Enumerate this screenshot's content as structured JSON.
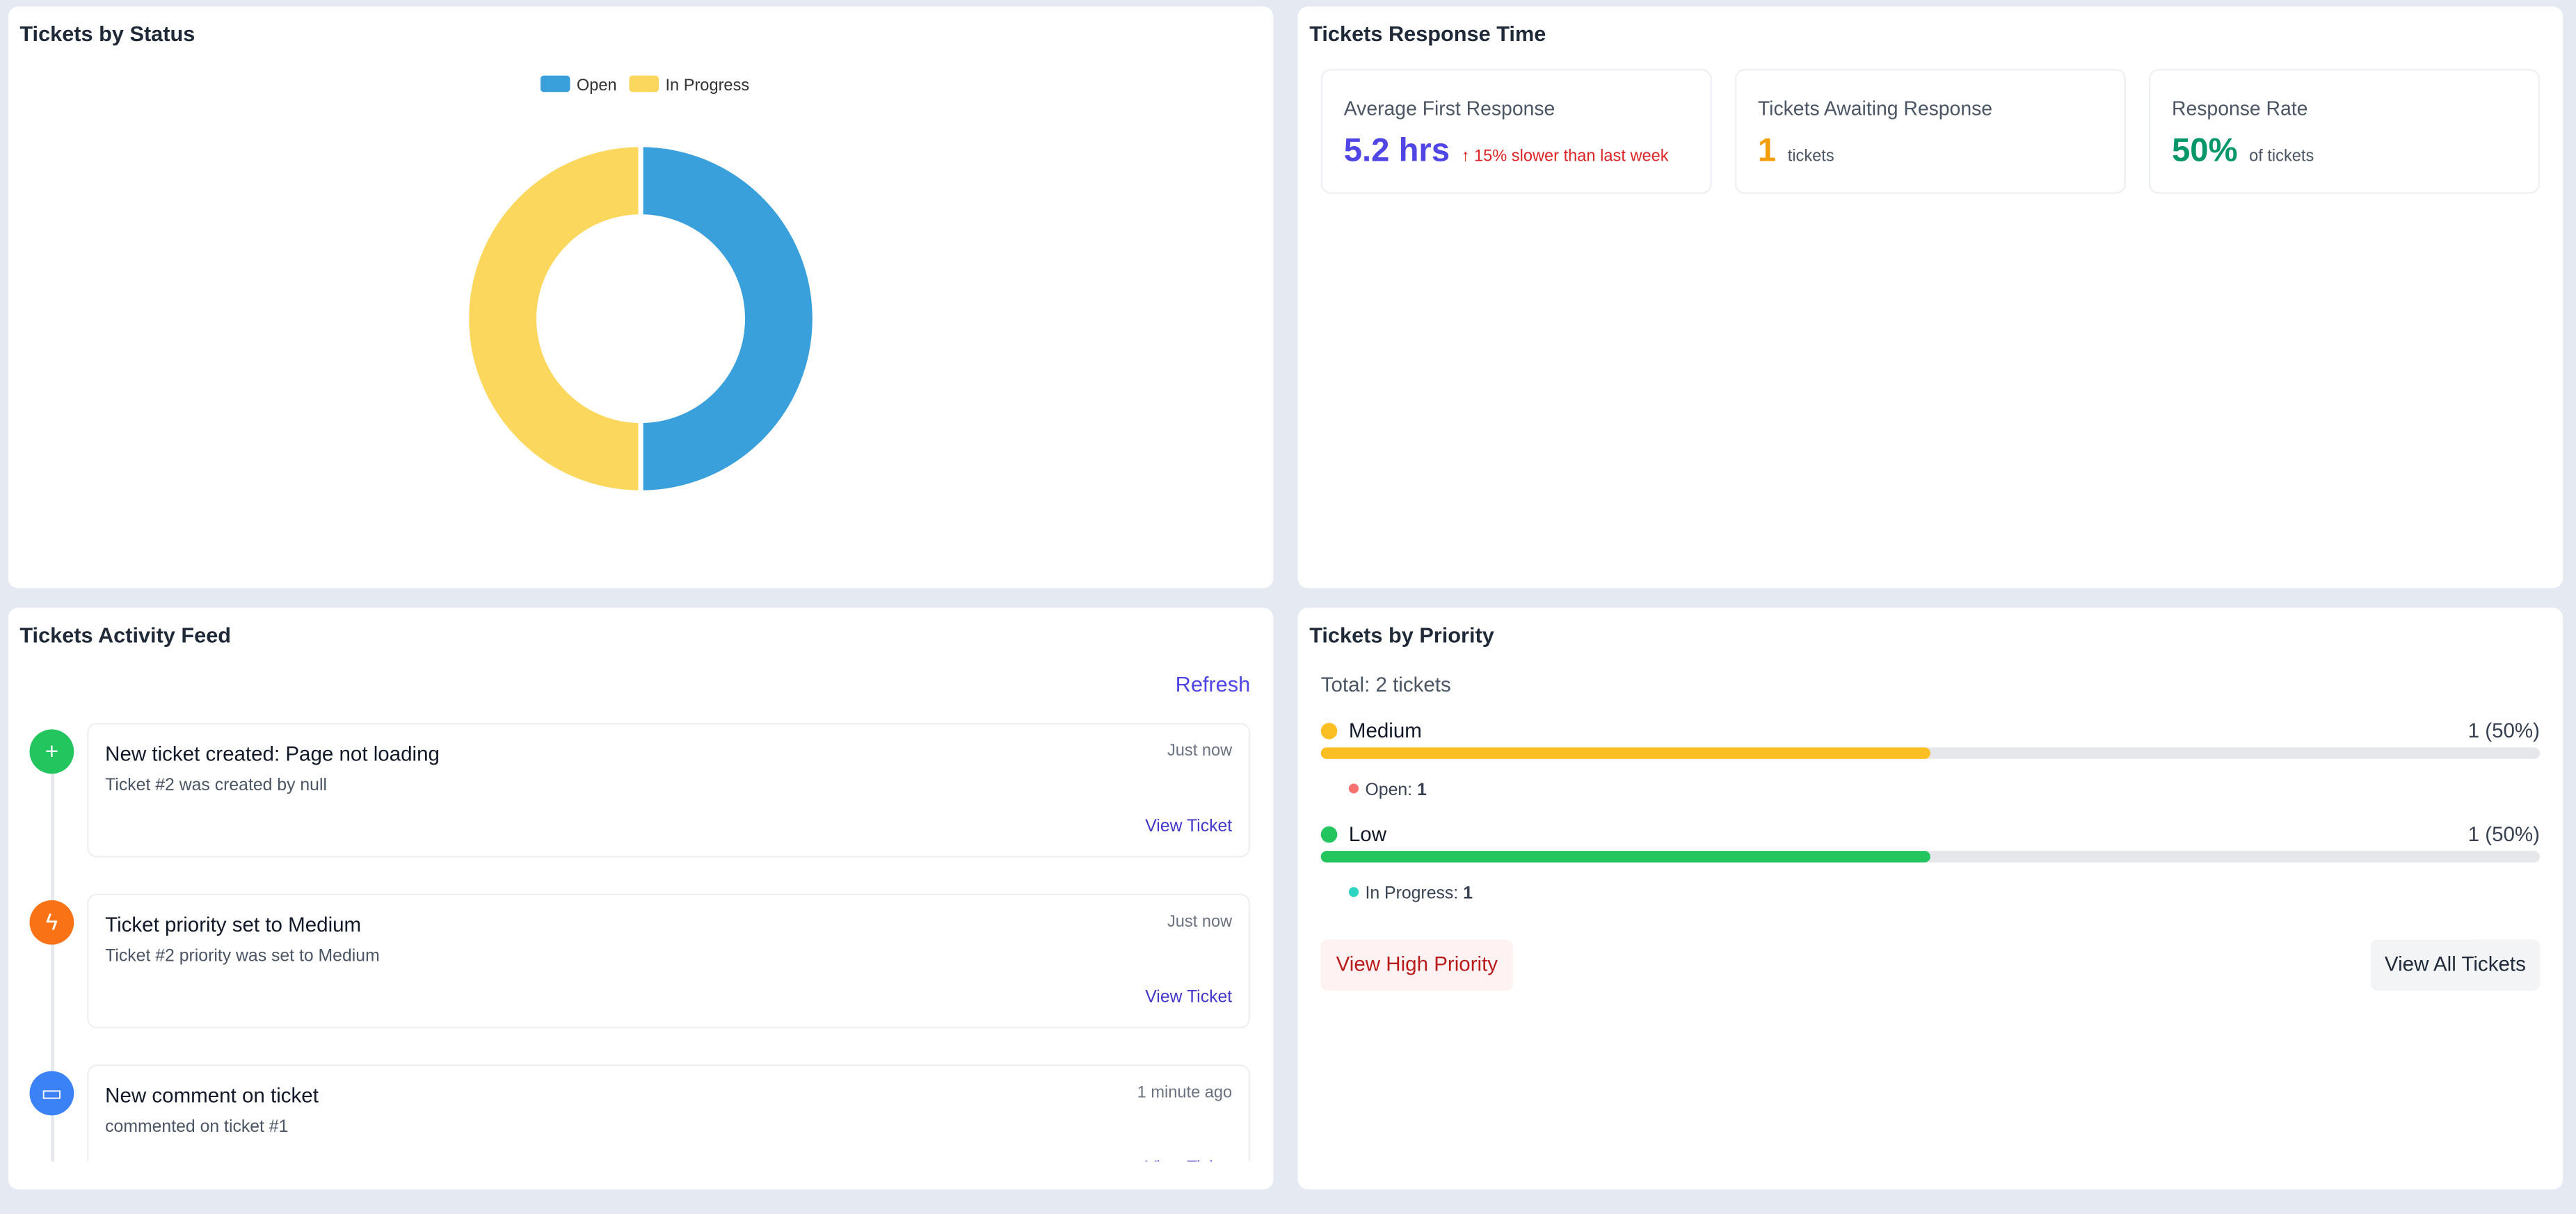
{
  "status_panel": {
    "title": "Tickets by Status"
  },
  "chart_data": {
    "type": "doughnut",
    "categories": [
      "Open",
      "In Progress"
    ],
    "values": [
      1,
      1
    ],
    "colors": [
      "#3aa0dc",
      "#fcd75e"
    ],
    "legend": "top"
  },
  "response_panel": {
    "title": "Tickets Response Time",
    "cards": [
      {
        "label": "Average First Response",
        "value": "5.2 hrs",
        "note": "↑ 15% slower than last week",
        "color": "#4f46e5"
      },
      {
        "label": "Tickets Awaiting Response",
        "value": "1",
        "note": "tickets",
        "color": "#f59e0b"
      },
      {
        "label": "Response Rate",
        "value": "50%",
        "note": "of tickets",
        "color": "#059669"
      }
    ]
  },
  "activity": {
    "title": "Tickets Activity Feed",
    "refresh": "Refresh",
    "items": [
      {
        "title": "New ticket created: Page not loading",
        "description": "Ticket #2 was created by null",
        "time": "Just now",
        "action": "View Ticket"
      },
      {
        "title": "Ticket priority set to Medium",
        "description": "Ticket #2 priority was set to Medium",
        "time": "Just now",
        "action": "View Ticket"
      },
      {
        "title": "New comment on ticket",
        "description": "commented on ticket #1",
        "time": "1 minute ago",
        "action": "View Ticket"
      }
    ]
  },
  "priority": {
    "title": "Tickets by Priority",
    "total": "Total: 2 tickets",
    "levels": [
      {
        "name": "Medium",
        "count_label": "1 (50%)",
        "percent": 50,
        "color": "#fbbf24",
        "breakdown_label": "Open:",
        "breakdown_value": 1,
        "breakdown_color": "#f87171"
      },
      {
        "name": "Low",
        "count_label": "1 (50%)",
        "percent": 50,
        "color": "#22c55e",
        "breakdown_label": "In Progress:",
        "breakdown_value": 1,
        "breakdown_color": "#2dd4bf"
      }
    ],
    "buttons": [
      "View High Priority",
      "View All Tickets"
    ]
  }
}
